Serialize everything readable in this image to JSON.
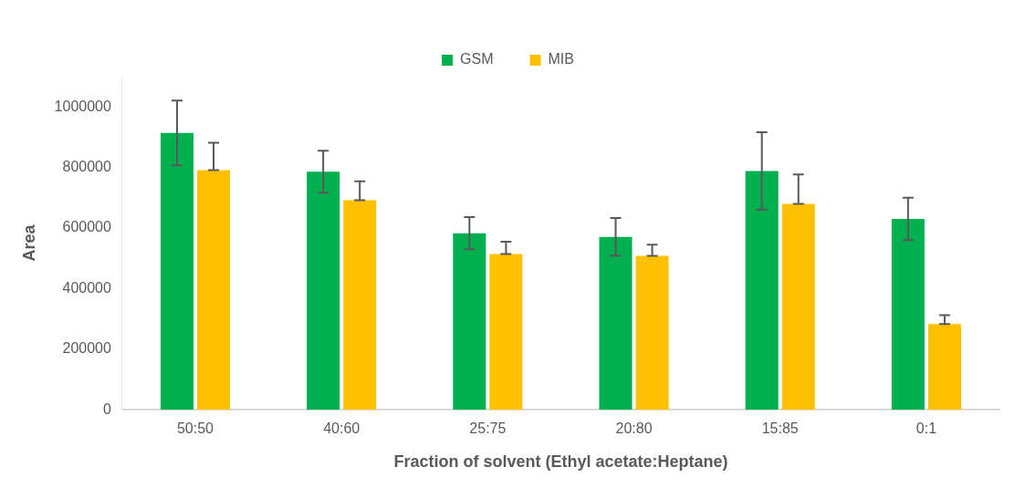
{
  "chart_data": {
    "type": "bar",
    "xlabel": "Fraction of solvent (Ethyl acetate:Heptane)",
    "ylabel": "Area",
    "categories": [
      "50:50",
      "40:60",
      "25:75",
      "20:80",
      "15:85",
      "0:1"
    ],
    "series": [
      {
        "name": "GSM",
        "color": "#00b050",
        "values": [
          914000,
          786000,
          583000,
          571000,
          788000,
          630000
        ],
        "errors": [
          107000,
          69000,
          53000,
          62000,
          128000,
          70000
        ]
      },
      {
        "name": "MIB",
        "color": "#ffc000",
        "values": [
          791000,
          692000,
          514000,
          508000,
          680000,
          283000
        ],
        "errors": [
          [
            791000,
            882000
          ],
          [
            692000,
            754000
          ],
          [
            514000,
            555000
          ],
          [
            508000,
            545000
          ],
          [
            680000,
            777000
          ],
          [
            283000,
            312000
          ]
        ]
      }
    ],
    "ylim": [
      0,
      1100000
    ],
    "yticks": [
      0,
      200000,
      400000,
      600000,
      800000,
      1000000
    ],
    "grid": false,
    "legend": "top"
  }
}
